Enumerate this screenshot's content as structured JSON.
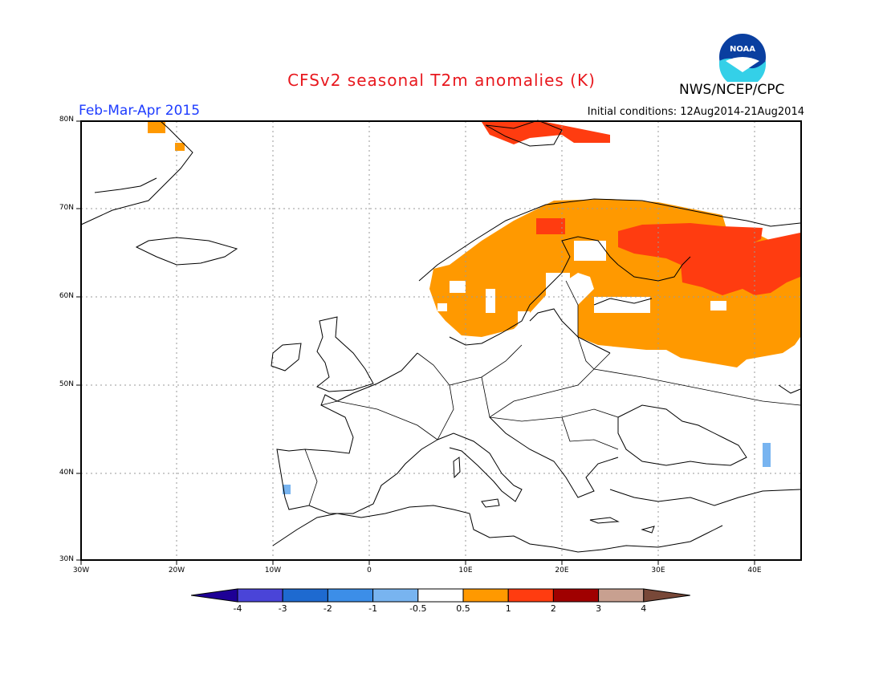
{
  "title": "CFSv2 seasonal T2m anomalies (K)",
  "season": "Feb-Mar-Apr 2015",
  "initial_conditions": "Initial conditions: 12Aug2014-21Aug2014",
  "agency": "NWS/NCEP/CPC",
  "logo_text": "NOAA",
  "lat_labels": [
    "80N",
    "70N",
    "60N",
    "50N",
    "40N",
    "30N"
  ],
  "lon_labels": [
    "30W",
    "20W",
    "10W",
    "0",
    "10E",
    "20E",
    "30E",
    "40E"
  ],
  "colorbar": {
    "ticks": [
      "-4",
      "-3",
      "-2",
      "-1",
      "-0.5",
      "0.5",
      "1",
      "2",
      "3",
      "4"
    ],
    "colors": [
      "#1e0096",
      "#4a44d8",
      "#1e6ad0",
      "#3c8ee8",
      "#78b4f0",
      "#ffffff",
      "#ff9900",
      "#ff3c10",
      "#a00000",
      "#c8a090",
      "#784838"
    ]
  }
}
